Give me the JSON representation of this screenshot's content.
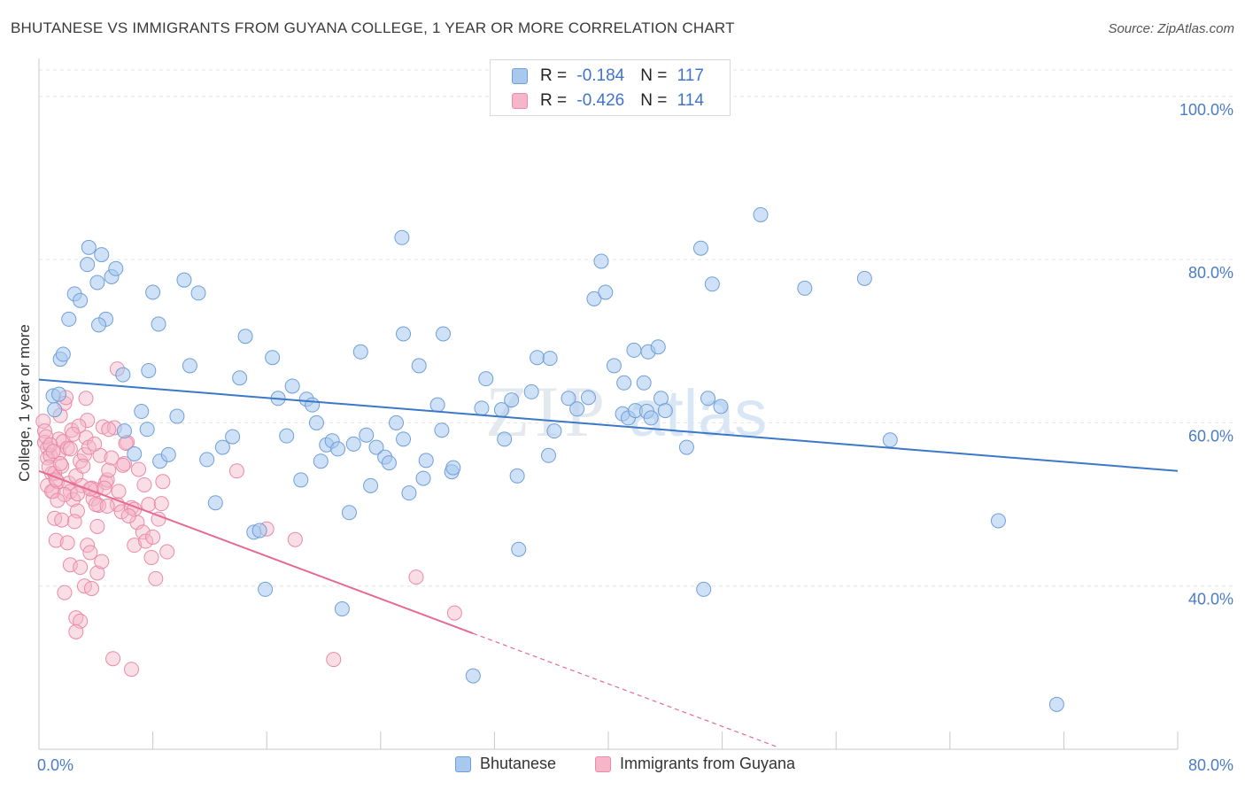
{
  "header": {
    "title": "BHUTANESE VS IMMIGRANTS FROM GUYANA COLLEGE, 1 YEAR OR MORE CORRELATION CHART",
    "source": "Source: ZipAtlas.com"
  },
  "legend": {
    "rows": [
      {
        "r_label": "R = ",
        "r_value": "-0.184",
        "n_label": "N = ",
        "n_value": "117"
      },
      {
        "r_label": "R = ",
        "r_value": "-0.426",
        "n_label": "N = ",
        "n_value": "114"
      }
    ],
    "series": [
      "Bhutanese",
      "Immigrants from Guyana"
    ]
  },
  "watermark": {
    "zip": "ZIP",
    "atlas": "atlas"
  },
  "colors": {
    "blue_fill": "#a8c8ee",
    "blue_stroke": "#6f9fd8",
    "blue_line": "#3b78c9",
    "pink_fill": "#f4b6c8",
    "pink_stroke": "#ea8aa8",
    "pink_line": "#e66a93",
    "tick_text": "#4a7cc7"
  },
  "chart_data": {
    "type": "scatter",
    "title": "BHUTANESE VS IMMIGRANTS FROM GUYANA COLLEGE, 1 YEAR OR MORE CORRELATION CHART",
    "xlabel": "",
    "ylabel": "College, 1 year or more",
    "xlim": [
      0,
      80
    ],
    "ylim": [
      20,
      104
    ],
    "x_ticks": [
      "0.0%",
      "80.0%"
    ],
    "y_ticks": [
      {
        "value": 100,
        "label": "100.0%"
      },
      {
        "value": 80,
        "label": "80.0%"
      },
      {
        "value": 60,
        "label": "60.0%"
      },
      {
        "value": 40,
        "label": "40.0%"
      }
    ],
    "grid": true,
    "legend_position": "top-center",
    "series": [
      {
        "name": "Bhutanese",
        "color": "#a8c8ee",
        "trend": {
          "x": [
            0,
            80
          ],
          "y": [
            65.3,
            54.1
          ]
        },
        "points": [
          [
            1.0,
            63.3
          ],
          [
            1.4,
            63.5
          ],
          [
            1.1,
            61.6
          ],
          [
            1.5,
            67.8
          ],
          [
            1.7,
            68.4
          ],
          [
            2.1,
            72.7
          ],
          [
            2.5,
            75.8
          ],
          [
            2.9,
            75.0
          ],
          [
            3.5,
            81.5
          ],
          [
            3.4,
            79.4
          ],
          [
            4.1,
            77.2
          ],
          [
            4.4,
            80.6
          ],
          [
            5.1,
            77.9
          ],
          [
            5.4,
            78.9
          ],
          [
            4.7,
            72.7
          ],
          [
            4.2,
            72.0
          ],
          [
            5.9,
            65.9
          ],
          [
            6.0,
            59.0
          ],
          [
            6.7,
            56.2
          ],
          [
            7.2,
            61.4
          ],
          [
            7.6,
            59.2
          ],
          [
            7.7,
            66.4
          ],
          [
            8.0,
            76.0
          ],
          [
            8.4,
            72.1
          ],
          [
            8.5,
            55.3
          ],
          [
            9.1,
            56.1
          ],
          [
            9.7,
            60.8
          ],
          [
            10.2,
            77.5
          ],
          [
            10.6,
            67.0
          ],
          [
            11.2,
            75.9
          ],
          [
            11.8,
            55.5
          ],
          [
            12.4,
            50.2
          ],
          [
            12.9,
            57.0
          ],
          [
            13.6,
            58.3
          ],
          [
            14.1,
            65.5
          ],
          [
            14.5,
            70.6
          ],
          [
            15.1,
            46.6
          ],
          [
            15.5,
            46.8
          ],
          [
            15.9,
            39.6
          ],
          [
            16.4,
            68.0
          ],
          [
            16.8,
            63.0
          ],
          [
            17.4,
            58.4
          ],
          [
            17.8,
            64.5
          ],
          [
            18.4,
            53.0
          ],
          [
            18.8,
            62.9
          ],
          [
            19.2,
            62.2
          ],
          [
            19.5,
            60.0
          ],
          [
            19.8,
            55.3
          ],
          [
            20.2,
            57.3
          ],
          [
            20.6,
            57.8
          ],
          [
            21.0,
            56.8
          ],
          [
            21.3,
            37.2
          ],
          [
            21.8,
            49.0
          ],
          [
            22.1,
            57.4
          ],
          [
            22.6,
            68.7
          ],
          [
            23.0,
            58.5
          ],
          [
            23.3,
            52.3
          ],
          [
            23.7,
            57.0
          ],
          [
            24.3,
            55.8
          ],
          [
            24.6,
            55.1
          ],
          [
            25.1,
            60.0
          ],
          [
            25.6,
            58.0
          ],
          [
            26.0,
            51.4
          ],
          [
            26.7,
            67.0
          ],
          [
            27.0,
            53.2
          ],
          [
            28.0,
            62.2
          ],
          [
            28.3,
            59.1
          ],
          [
            25.5,
            82.7
          ],
          [
            25.6,
            70.9
          ],
          [
            27.2,
            55.4
          ],
          [
            28.4,
            70.9
          ],
          [
            29.0,
            54.0
          ],
          [
            29.1,
            54.5
          ],
          [
            30.5,
            29.0
          ],
          [
            31.4,
            65.4
          ],
          [
            31.1,
            61.8
          ],
          [
            32.5,
            61.6
          ],
          [
            32.7,
            58.0
          ],
          [
            33.2,
            62.8
          ],
          [
            33.6,
            53.5
          ],
          [
            34.6,
            63.8
          ],
          [
            33.7,
            44.5
          ],
          [
            35.0,
            68.0
          ],
          [
            35.9,
            67.9
          ],
          [
            35.8,
            56.0
          ],
          [
            36.2,
            59.0
          ],
          [
            37.2,
            63.0
          ],
          [
            37.8,
            61.7
          ],
          [
            38.6,
            63.1
          ],
          [
            39.0,
            75.2
          ],
          [
            39.8,
            76.0
          ],
          [
            40.4,
            67.0
          ],
          [
            41.1,
            64.9
          ],
          [
            41.0,
            61.1
          ],
          [
            41.8,
            68.9
          ],
          [
            41.4,
            60.6
          ],
          [
            41.9,
            61.5
          ],
          [
            42.5,
            64.9
          ],
          [
            42.8,
            68.7
          ],
          [
            43.5,
            69.3
          ],
          [
            39.5,
            79.8
          ],
          [
            42.7,
            61.4
          ],
          [
            43.0,
            60.6
          ],
          [
            43.7,
            63.0
          ],
          [
            45.5,
            57.0
          ],
          [
            46.5,
            81.4
          ],
          [
            46.7,
            39.6
          ],
          [
            47.0,
            63.0
          ],
          [
            47.3,
            77.0
          ],
          [
            47.9,
            62.0
          ],
          [
            50.7,
            85.5
          ],
          [
            53.8,
            76.5
          ],
          [
            59.8,
            57.9
          ],
          [
            67.4,
            48.0
          ],
          [
            71.5,
            25.5
          ],
          [
            44.0,
            61.5
          ],
          [
            58.0,
            77.7
          ]
        ]
      },
      {
        "name": "Immigrants from Guyana",
        "color": "#f4b6c8",
        "trend": {
          "x": [
            0,
            30.5
          ],
          "y": [
            54.1,
            34.2
          ]
        },
        "trend_extension": {
          "x": [
            30.5,
            52.0
          ],
          "y": [
            34.2,
            20.2
          ]
        },
        "points": [
          [
            0.3,
            60.2
          ],
          [
            0.4,
            59.0
          ],
          [
            0.4,
            57.6
          ],
          [
            0.6,
            56.9
          ],
          [
            0.6,
            55.7
          ],
          [
            0.8,
            56.0
          ],
          [
            0.9,
            53.8
          ],
          [
            0.6,
            52.3
          ],
          [
            1.0,
            51.6
          ],
          [
            1.1,
            53.8
          ],
          [
            1.3,
            52.8
          ],
          [
            1.1,
            48.3
          ],
          [
            1.2,
            45.6
          ],
          [
            1.5,
            60.9
          ],
          [
            1.8,
            62.4
          ],
          [
            1.4,
            58.0
          ],
          [
            1.4,
            56.3
          ],
          [
            1.6,
            54.7
          ],
          [
            1.9,
            63.1
          ],
          [
            1.7,
            57.7
          ],
          [
            2.0,
            56.9
          ],
          [
            2.2,
            56.8
          ],
          [
            2.1,
            52.6
          ],
          [
            2.2,
            51.6
          ],
          [
            2.4,
            50.6
          ],
          [
            2.6,
            53.5
          ],
          [
            2.7,
            49.2
          ],
          [
            2.9,
            55.3
          ],
          [
            3.0,
            52.3
          ],
          [
            3.2,
            56.1
          ],
          [
            3.3,
            58.2
          ],
          [
            3.3,
            63.0
          ],
          [
            3.4,
            60.3
          ],
          [
            3.4,
            45.0
          ],
          [
            3.6,
            44.1
          ],
          [
            3.7,
            52.0
          ],
          [
            3.8,
            50.7
          ],
          [
            4.0,
            51.8
          ],
          [
            4.1,
            47.3
          ],
          [
            4.1,
            41.6
          ],
          [
            4.2,
            49.9
          ],
          [
            4.3,
            56.0
          ],
          [
            4.4,
            43.0
          ],
          [
            4.5,
            59.5
          ],
          [
            4.7,
            52.7
          ],
          [
            4.8,
            53.0
          ],
          [
            4.9,
            54.2
          ],
          [
            5.1,
            55.7
          ],
          [
            5.3,
            59.4
          ],
          [
            5.5,
            50.0
          ],
          [
            5.6,
            51.6
          ],
          [
            5.8,
            49.1
          ],
          [
            6.0,
            55.0
          ],
          [
            6.2,
            57.6
          ],
          [
            6.5,
            49.6
          ],
          [
            6.7,
            49.4
          ],
          [
            6.7,
            45.0
          ],
          [
            6.9,
            47.8
          ],
          [
            7.0,
            54.3
          ],
          [
            7.3,
            46.6
          ],
          [
            7.5,
            45.5
          ],
          [
            7.7,
            50.0
          ],
          [
            7.9,
            43.5
          ],
          [
            8.0,
            46.0
          ],
          [
            8.4,
            48.2
          ],
          [
            8.6,
            50.1
          ],
          [
            8.7,
            52.8
          ],
          [
            9.0,
            44.2
          ],
          [
            5.5,
            66.6
          ],
          [
            2.0,
            45.3
          ],
          [
            2.2,
            42.6
          ],
          [
            2.9,
            42.3
          ],
          [
            3.2,
            40.0
          ],
          [
            3.7,
            39.7
          ],
          [
            2.6,
            36.1
          ],
          [
            2.9,
            35.7
          ],
          [
            2.6,
            34.4
          ],
          [
            1.8,
            39.2
          ],
          [
            5.2,
            31.1
          ],
          [
            6.5,
            29.8
          ],
          [
            0.9,
            51.6
          ],
          [
            1.2,
            53.0
          ],
          [
            1.8,
            51.2
          ],
          [
            2.5,
            47.9
          ],
          [
            3.6,
            51.9
          ],
          [
            4.6,
            52.0
          ],
          [
            0.5,
            58.3
          ],
          [
            0.7,
            54.6
          ],
          [
            1.5,
            55.0
          ],
          [
            2.3,
            59.1
          ],
          [
            2.8,
            59.6
          ],
          [
            3.5,
            57.0
          ],
          [
            4.9,
            59.2
          ],
          [
            5.9,
            54.8
          ],
          [
            6.3,
            48.6
          ],
          [
            8.2,
            40.9
          ],
          [
            13.9,
            54.1
          ],
          [
            16.0,
            47.0
          ],
          [
            18.0,
            45.7
          ],
          [
            26.5,
            41.1
          ],
          [
            29.2,
            36.7
          ],
          [
            20.7,
            31.0
          ],
          [
            1.3,
            50.5
          ],
          [
            2.7,
            51.3
          ],
          [
            3.1,
            54.7
          ],
          [
            4.0,
            50.0
          ],
          [
            4.8,
            49.8
          ],
          [
            1.6,
            48.1
          ],
          [
            0.8,
            57.3
          ],
          [
            1.0,
            56.5
          ],
          [
            2.4,
            58.6
          ],
          [
            3.9,
            57.4
          ],
          [
            6.1,
            57.5
          ],
          [
            7.4,
            52.4
          ]
        ]
      }
    ]
  }
}
